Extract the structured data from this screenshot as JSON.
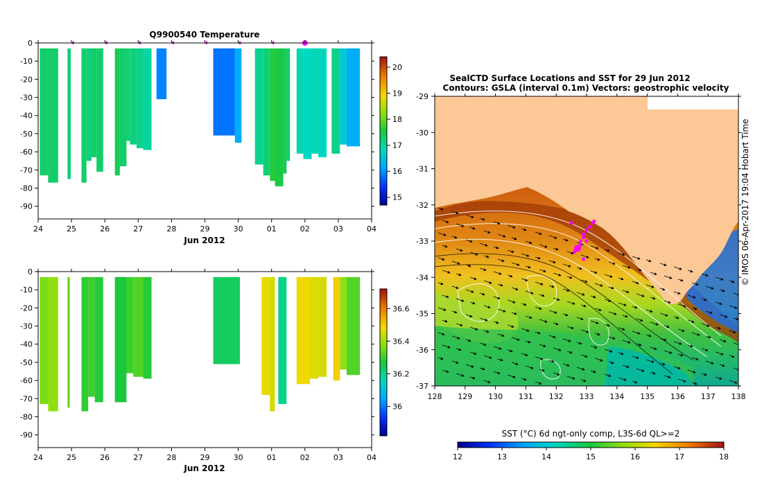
{
  "chart_data": [
    {
      "type": "heatmap",
      "title": "Q9900540  Temperature",
      "xlabel": "Jun 2012",
      "ylabel": "",
      "x_ticks": [
        "24",
        "25",
        "26",
        "27",
        "28",
        "29",
        "30",
        "01",
        "02",
        "03",
        "04"
      ],
      "y_ticks": [
        0,
        -10,
        -20,
        -30,
        -40,
        -50,
        -60,
        -70,
        -80,
        -90
      ],
      "ylim": [
        -97,
        0
      ],
      "xlim_days": [
        0,
        10
      ],
      "colorbar": {
        "ticks": [
          15,
          16,
          17,
          18,
          19,
          20
        ],
        "range": [
          14.7,
          20.4
        ]
      },
      "profile_markers_days": [
        1.05,
        2.05,
        3.05,
        4.05,
        5.05,
        6.05,
        7.05,
        8.05
      ],
      "highlight_marker_day": 8.0,
      "profiles": [
        {
          "start": 0.05,
          "end": 0.3,
          "depth": -73,
          "value": 17.3
        },
        {
          "start": 0.3,
          "end": 0.6,
          "depth": -77,
          "value": 17.3
        },
        {
          "start": 0.88,
          "end": 0.98,
          "depth": -75,
          "value": 17.2
        },
        {
          "start": 1.3,
          "end": 1.45,
          "depth": -77,
          "value": 17.3
        },
        {
          "start": 1.45,
          "end": 1.6,
          "depth": -65,
          "value": 17.2
        },
        {
          "start": 1.6,
          "end": 1.75,
          "depth": -63,
          "value": 17.3
        },
        {
          "start": 1.75,
          "end": 1.95,
          "depth": -71,
          "value": 17.3
        },
        {
          "start": 2.3,
          "end": 2.45,
          "depth": -73,
          "value": 17.4
        },
        {
          "start": 2.45,
          "end": 2.65,
          "depth": -68,
          "value": 17.3
        },
        {
          "start": 2.65,
          "end": 2.75,
          "depth": -54,
          "value": 17.2
        },
        {
          "start": 2.75,
          "end": 2.95,
          "depth": -56,
          "value": 17.2
        },
        {
          "start": 2.95,
          "end": 3.15,
          "depth": -58,
          "value": 17.1
        },
        {
          "start": 3.15,
          "end": 3.4,
          "depth": -59,
          "value": 17.0
        },
        {
          "start": 3.55,
          "end": 3.85,
          "depth": -31,
          "value": 15.9
        },
        {
          "start": 5.25,
          "end": 5.9,
          "depth": -51,
          "value": 15.8
        },
        {
          "start": 5.9,
          "end": 6.1,
          "depth": -55,
          "value": 16.2
        },
        {
          "start": 6.5,
          "end": 6.75,
          "depth": -67,
          "value": 17.1
        },
        {
          "start": 6.75,
          "end": 6.95,
          "depth": -73,
          "value": 17.2
        },
        {
          "start": 6.95,
          "end": 7.1,
          "depth": -76,
          "value": 17.6
        },
        {
          "start": 7.1,
          "end": 7.35,
          "depth": -79,
          "value": 17.5
        },
        {
          "start": 7.35,
          "end": 7.45,
          "depth": -72,
          "value": 17.4
        },
        {
          "start": 7.45,
          "end": 7.55,
          "depth": -65,
          "value": 17.3
        },
        {
          "start": 7.75,
          "end": 7.95,
          "depth": -61,
          "value": 16.9
        },
        {
          "start": 7.95,
          "end": 8.2,
          "depth": -64,
          "value": 16.8
        },
        {
          "start": 8.2,
          "end": 8.4,
          "depth": -61,
          "value": 16.9
        },
        {
          "start": 8.4,
          "end": 8.65,
          "depth": -63,
          "value": 16.8
        },
        {
          "start": 8.8,
          "end": 9.05,
          "depth": -61,
          "value": 17.1
        },
        {
          "start": 9.05,
          "end": 9.25,
          "depth": -56,
          "value": 16.6
        },
        {
          "start": 9.25,
          "end": 9.65,
          "depth": -57,
          "value": 16.2
        }
      ]
    },
    {
      "type": "heatmap",
      "title": "",
      "xlabel": "Jun 2012",
      "ylabel": "",
      "x_ticks": [
        "24",
        "25",
        "26",
        "27",
        "28",
        "29",
        "30",
        "01",
        "02",
        "03",
        "04"
      ],
      "y_ticks": [
        0,
        -10,
        -20,
        -30,
        -40,
        -50,
        -60,
        -70,
        -80,
        -90
      ],
      "ylim": [
        -97,
        0
      ],
      "xlim_days": [
        0,
        10
      ],
      "colorbar": {
        "ticks": [
          36,
          36.2,
          36.4,
          36.6
        ],
        "range": [
          35.82,
          36.72
        ]
      },
      "profiles": [
        {
          "start": 0.05,
          "end": 0.3,
          "depth": -73,
          "value": 36.36
        },
        {
          "start": 0.3,
          "end": 0.6,
          "depth": -77,
          "value": 36.38
        },
        {
          "start": 0.88,
          "end": 0.95,
          "depth": -75,
          "value": 36.34
        },
        {
          "start": 1.3,
          "end": 1.5,
          "depth": -77,
          "value": 36.29
        },
        {
          "start": 1.5,
          "end": 1.7,
          "depth": -69,
          "value": 36.3
        },
        {
          "start": 1.7,
          "end": 1.95,
          "depth": -72,
          "value": 36.28
        },
        {
          "start": 2.3,
          "end": 2.65,
          "depth": -72,
          "value": 36.27
        },
        {
          "start": 2.65,
          "end": 2.85,
          "depth": -56,
          "value": 36.3
        },
        {
          "start": 2.85,
          "end": 3.15,
          "depth": -58,
          "value": 36.32
        },
        {
          "start": 3.15,
          "end": 3.4,
          "depth": -59,
          "value": 36.28
        },
        {
          "start": 5.25,
          "end": 6.05,
          "depth": -51,
          "value": 36.24
        },
        {
          "start": 6.7,
          "end": 6.95,
          "depth": -68,
          "value": 36.47
        },
        {
          "start": 6.95,
          "end": 7.1,
          "depth": -77,
          "value": 36.45
        },
        {
          "start": 7.2,
          "end": 7.45,
          "depth": -73,
          "value": 36.2
        },
        {
          "start": 7.75,
          "end": 8.15,
          "depth": -62,
          "value": 36.48
        },
        {
          "start": 8.15,
          "end": 8.4,
          "depth": -59,
          "value": 36.46
        },
        {
          "start": 8.4,
          "end": 8.65,
          "depth": -58,
          "value": 36.45
        },
        {
          "start": 8.85,
          "end": 9.05,
          "depth": -60,
          "value": 36.5
        },
        {
          "start": 9.05,
          "end": 9.25,
          "depth": -54,
          "value": 36.38
        },
        {
          "start": 9.25,
          "end": 9.65,
          "depth": -57,
          "value": 36.32
        }
      ]
    },
    {
      "type": "heatmap",
      "title": "SealCTD Surface Locations and SST for 29 Jun 2012",
      "subtitle": "Contours: GSLA (interval 0.1m) Vectors: geostrophic velocity",
      "xlabel": "",
      "ylabel": "",
      "x_ticks": [
        128,
        129,
        130,
        131,
        132,
        133,
        134,
        135,
        136,
        137,
        138
      ],
      "y_ticks": [
        -29,
        -30,
        -31,
        -32,
        -33,
        -34,
        -35,
        -36,
        -37
      ],
      "xlim": [
        128,
        138
      ],
      "ylim": [
        -37,
        -29
      ],
      "colorbar": {
        "label": "SST (°C) 6d ngt-only comp, L3S-6d QL>=2",
        "ticks": [
          12,
          13,
          14,
          15,
          16,
          17,
          18
        ],
        "range": [
          12,
          18
        ]
      },
      "seal_locations": [
        {
          "lon": 132.6,
          "lat": -33.3
        },
        {
          "lon": 132.7,
          "lat": -33.2
        },
        {
          "lon": 132.8,
          "lat": -33.0
        },
        {
          "lon": 132.9,
          "lat": -32.8
        },
        {
          "lon": 133.0,
          "lat": -32.7
        },
        {
          "lon": 133.1,
          "lat": -32.6
        },
        {
          "lon": 133.2,
          "lat": -32.5
        },
        {
          "lon": 133.25,
          "lat": -32.45
        },
        {
          "lon": 132.8,
          "lat": -33.1
        },
        {
          "lon": 132.9,
          "lat": -32.9
        },
        {
          "lon": 133.0,
          "lat": -33.0
        },
        {
          "lon": 132.5,
          "lat": -32.5
        },
        {
          "lon": 132.9,
          "lat": -33.5
        }
      ]
    }
  ],
  "credit": "IMOS 06-Apr-2017 19:04 Hobart Time",
  "colors": {
    "land": "#fcc896",
    "marker": "#ff00ff",
    "axis": "#000000"
  }
}
